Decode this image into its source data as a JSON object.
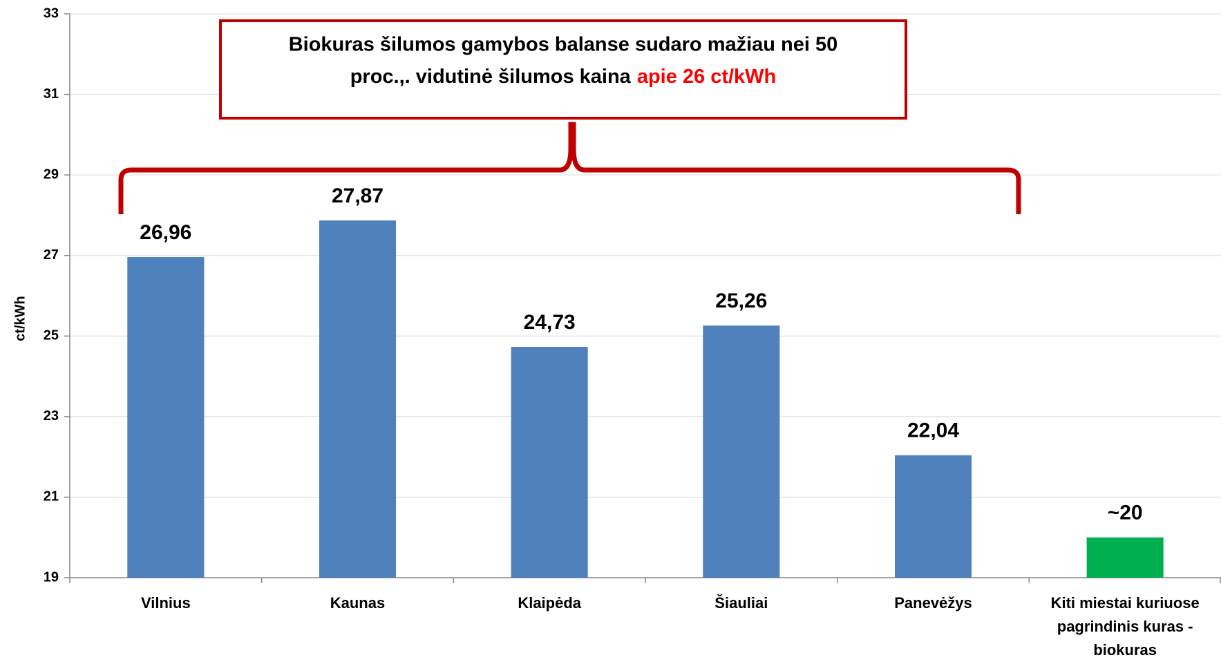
{
  "chart_data": {
    "type": "bar",
    "y_label": "ct/kWh",
    "categories": [
      "Vilnius",
      "Kaunas",
      "Klaipėda",
      "Šiauliai",
      "Panevėžys",
      [
        "Kiti miestai kuriuose",
        "pagrindinis kuras -",
        "biokuras"
      ]
    ],
    "values": [
      26.96,
      27.87,
      24.73,
      25.26,
      22.04,
      20
    ],
    "value_labels": [
      "26,96",
      "27,87",
      "24,73",
      "25,26",
      "22,04",
      "~20"
    ],
    "colors": [
      "#4f81bd",
      "#4f81bd",
      "#4f81bd",
      "#4f81bd",
      "#4f81bd",
      "#00b050"
    ],
    "ylim": [
      19,
      33
    ],
    "yticks": [
      19,
      21,
      23,
      25,
      27,
      29,
      31,
      33
    ],
    "grid": true,
    "annotation": {
      "lines": [
        "Biokuras šilumos gamybos balanse sudaro mažiau nei 50",
        "proc.,. vidutinė šilumos kaina"
      ],
      "highlight": "apie 26 ct/kWh"
    }
  }
}
